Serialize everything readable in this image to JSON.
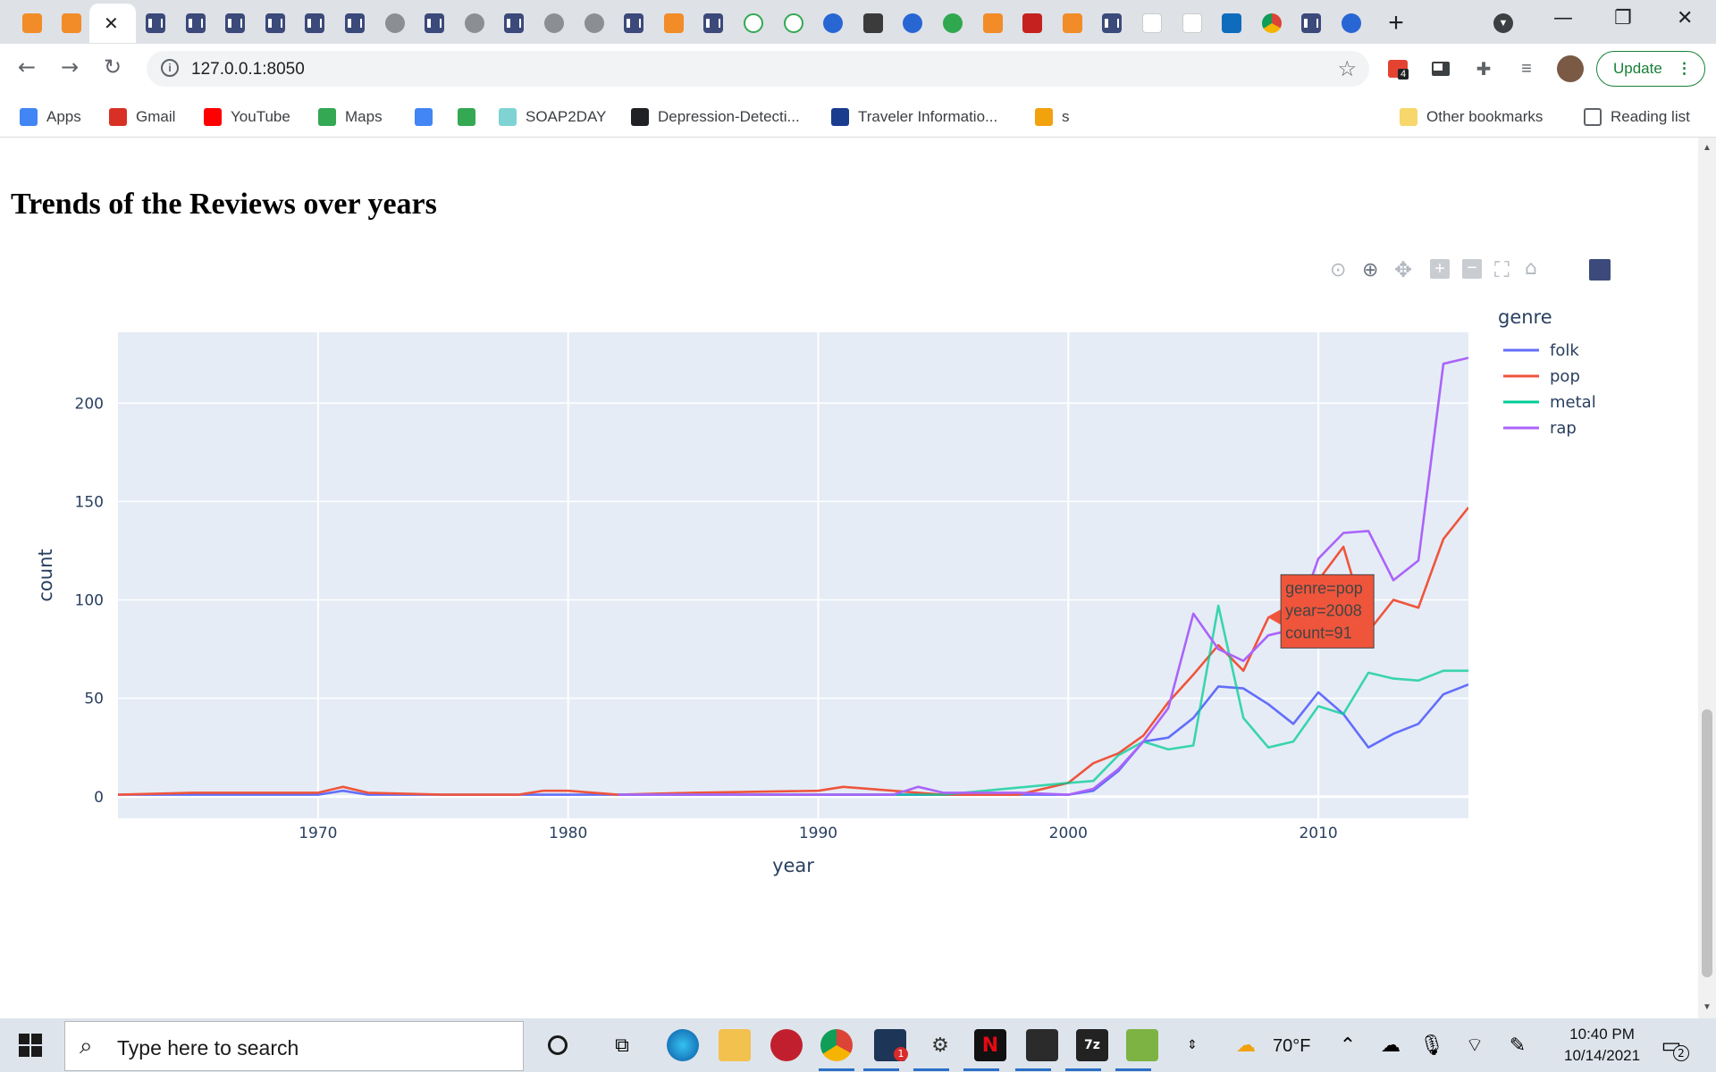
{
  "browser": {
    "address": "127.0.0.1:8050",
    "update_label": "Update",
    "extension_badge": "4",
    "bookmarks": [
      {
        "label": "Apps",
        "color": "#4285f4"
      },
      {
        "label": "Gmail",
        "color": "#d93025"
      },
      {
        "label": "YouTube",
        "color": "#ff0000"
      },
      {
        "label": "Maps",
        "color": "#34a853"
      },
      {
        "label": "",
        "color": "#4285f4"
      },
      {
        "label": "",
        "color": "#34a853"
      },
      {
        "label": "SOAP2DAY",
        "color": "#7fd3d3"
      },
      {
        "label": "Depression-Detecti...",
        "color": "#202124"
      },
      {
        "label": "Traveler Informatio...",
        "color": "#1a3c8f"
      },
      {
        "label": "s",
        "color": "#f2a20d"
      }
    ],
    "other_bookmarks": "Other bookmarks",
    "reading_list": "Reading list"
  },
  "page": {
    "title": "Trends of the Reviews over years"
  },
  "chart_data": {
    "type": "line",
    "xlabel": "year",
    "ylabel": "count",
    "legend_title": "genre",
    "legend_position": "top-right",
    "xlim": [
      1962,
      2016
    ],
    "ylim": [
      -11,
      236
    ],
    "x_ticks": [
      1970,
      1980,
      1990,
      2000,
      2010
    ],
    "y_ticks": [
      0,
      50,
      100,
      150,
      200
    ],
    "grid": true,
    "background": "#e5ecf6",
    "series": [
      {
        "name": "folk",
        "color": "#636efa",
        "x": [
          1962,
          1965,
          1970,
          1971,
          1972,
          1980,
          1985,
          1990,
          1995,
          2000,
          2001,
          2002,
          2003,
          2004,
          2005,
          2006,
          2007,
          2008,
          2009,
          2010,
          2011,
          2012,
          2013,
          2014,
          2015,
          2016
        ],
        "y": [
          1,
          1,
          1,
          3,
          1,
          1,
          1,
          1,
          1,
          1,
          3,
          13,
          28,
          30,
          40,
          56,
          55,
          47,
          37,
          53,
          42,
          25,
          32,
          37,
          52,
          57
        ]
      },
      {
        "name": "pop",
        "color": "#ef553b",
        "x": [
          1962,
          1965,
          1970,
          1971,
          1972,
          1975,
          1978,
          1979,
          1980,
          1982,
          1985,
          1990,
          1991,
          1995,
          1998,
          2000,
          2001,
          2002,
          2003,
          2004,
          2005,
          2006,
          2007,
          2008,
          2009,
          2010,
          2011,
          2012,
          2013,
          2014,
          2015,
          2016
        ],
        "y": [
          1,
          2,
          2,
          5,
          2,
          1,
          1,
          3,
          3,
          1,
          2,
          3,
          5,
          1,
          1,
          7,
          17,
          22,
          31,
          48,
          62,
          77,
          64,
          91,
          98,
          110,
          127,
          84,
          100,
          96,
          131,
          147
        ]
      },
      {
        "name": "metal",
        "color": "#00cc96",
        "x": [
          1982,
          1985,
          1990,
          1995,
          2000,
          2001,
          2002,
          2003,
          2004,
          2005,
          2006,
          2007,
          2008,
          2009,
          2010,
          2011,
          2012,
          2013,
          2014,
          2015,
          2016
        ],
        "y": [
          1,
          1,
          1,
          1,
          7,
          8,
          21,
          28,
          24,
          26,
          97,
          40,
          25,
          28,
          46,
          42,
          63,
          60,
          59,
          64,
          64
        ],
        "style": "dimmed"
      },
      {
        "name": "rap",
        "color": "#ab63fa",
        "x": [
          1982,
          1985,
          1990,
          1993,
          1994,
          1995,
          1998,
          2000,
          2001,
          2002,
          2003,
          2004,
          2005,
          2006,
          2007,
          2008,
          2009,
          2010,
          2011,
          2012,
          2013,
          2014,
          2015,
          2016
        ],
        "y": [
          1,
          1,
          1,
          1,
          5,
          2,
          2,
          1,
          4,
          14,
          28,
          45,
          93,
          75,
          69,
          82,
          85,
          121,
          134,
          135,
          110,
          120,
          220,
          223
        ]
      }
    ],
    "hover": {
      "lines": [
        "genre=pop",
        "year=2008",
        "count=91"
      ],
      "x": 2008,
      "y": 91,
      "color": "#ef553b"
    }
  },
  "taskbar": {
    "search_placeholder": "Type here to search",
    "weather": "70°F",
    "time": "10:40 PM",
    "date": "10/14/2021",
    "mail_badge": "1",
    "notification_count": "2"
  }
}
